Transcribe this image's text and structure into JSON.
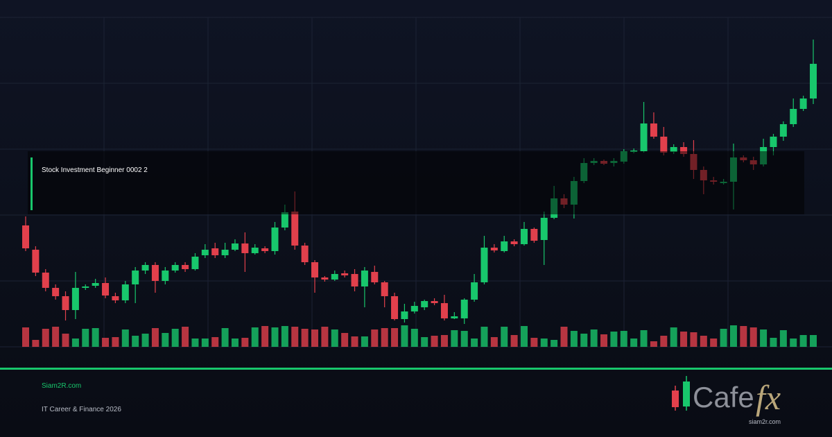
{
  "chart_data": {
    "type": "candlestick",
    "title": "Stock Investment Beginner 0002 2",
    "open": [
      175,
      140,
      107,
      85,
      73,
      53,
      85,
      88,
      92,
      73,
      67,
      90,
      110,
      118,
      95,
      110,
      118,
      112,
      132,
      142,
      132,
      140,
      149,
      135,
      142,
      138,
      172,
      195,
      146,
      122,
      100,
      97,
      106,
      105,
      87,
      108,
      93,
      73,
      40,
      51,
      57,
      66,
      63,
      41,
      41,
      68,
      93,
      143,
      138,
      152,
      148,
      170,
      154,
      186,
      214,
      205,
      239,
      265,
      268,
      265,
      267,
      281,
      282,
      322,
      303,
      281,
      288,
      278,
      255,
      240,
      236,
      238,
      273,
      269,
      263,
      288,
      303,
      321,
      343,
      358
    ],
    "close": [
      142,
      107,
      85,
      73,
      53,
      85,
      87,
      92,
      74,
      67,
      90,
      110,
      118,
      95,
      110,
      118,
      112,
      130,
      140,
      132,
      140,
      149,
      135,
      143,
      138,
      172,
      194,
      146,
      122,
      100,
      97,
      105,
      103,
      87,
      110,
      93,
      73,
      40,
      51,
      59,
      66,
      63,
      41,
      44,
      68,
      93,
      143,
      139,
      152,
      148,
      170,
      153,
      186,
      214,
      205,
      239,
      265,
      268,
      264,
      268,
      282,
      283,
      322,
      303,
      280,
      288,
      278,
      255,
      240,
      238,
      238,
      273,
      269,
      263,
      288,
      303,
      321,
      343,
      358,
      408
    ],
    "high": [
      188,
      145,
      112,
      90,
      80,
      108,
      90,
      98,
      100,
      78,
      95,
      115,
      122,
      122,
      115,
      122,
      122,
      135,
      148,
      150,
      150,
      155,
      165,
      148,
      145,
      180,
      205,
      224,
      150,
      125,
      102,
      110,
      110,
      112,
      115,
      117,
      95,
      78,
      62,
      65,
      68,
      70,
      75,
      50,
      70,
      105,
      160,
      148,
      160,
      155,
      180,
      172,
      195,
      232,
      220,
      245,
      272,
      272,
      270,
      272,
      285,
      286,
      353,
      338,
      317,
      292,
      295,
      298,
      260,
      245,
      242,
      293,
      276,
      274,
      300,
      307,
      325,
      358,
      362,
      443
    ],
    "low": [
      138,
      102,
      80,
      68,
      38,
      40,
      82,
      85,
      70,
      63,
      63,
      63,
      105,
      78,
      90,
      107,
      108,
      110,
      128,
      128,
      128,
      138,
      108,
      133,
      135,
      133,
      168,
      140,
      118,
      78,
      94,
      95,
      100,
      80,
      57,
      90,
      57,
      38,
      35,
      48,
      53,
      60,
      38,
      40,
      33,
      65,
      90,
      136,
      136,
      145,
      146,
      150,
      118,
      184,
      200,
      185,
      236,
      262,
      262,
      260,
      264,
      279,
      280,
      300,
      276,
      278,
      274,
      242,
      220,
      234,
      234,
      198,
      266,
      255,
      260,
      276,
      297,
      317,
      340,
      350
    ],
    "volume": [
      28,
      10,
      26,
      29,
      19,
      12,
      26,
      27,
      13,
      14,
      25,
      16,
      19,
      27,
      20,
      26,
      29,
      12,
      12,
      14,
      27,
      12,
      13,
      28,
      30,
      28,
      30,
      29,
      26,
      25,
      29,
      25,
      20,
      15,
      15,
      25,
      27,
      27,
      31,
      26,
      14,
      16,
      17,
      24,
      23,
      12,
      29,
      14,
      29,
      17,
      30,
      13,
      12,
      10,
      29,
      23,
      19,
      25,
      18,
      22,
      23,
      12,
      24,
      8,
      16,
      28,
      22,
      21,
      16,
      12,
      26,
      31,
      30,
      28,
      25,
      13,
      24,
      12,
      17,
      17
    ],
    "up_color": "#18c76c",
    "down_color": "#e2404c",
    "ylim": [
      0,
      475
    ],
    "volume_lim": [
      0,
      40
    ]
  },
  "footer": {
    "site": "Siam2R.com",
    "tagline": "IT Career & Finance 2026"
  },
  "brand": {
    "name": "Cafe",
    "accent": "fx",
    "url": "siam2r.com"
  }
}
